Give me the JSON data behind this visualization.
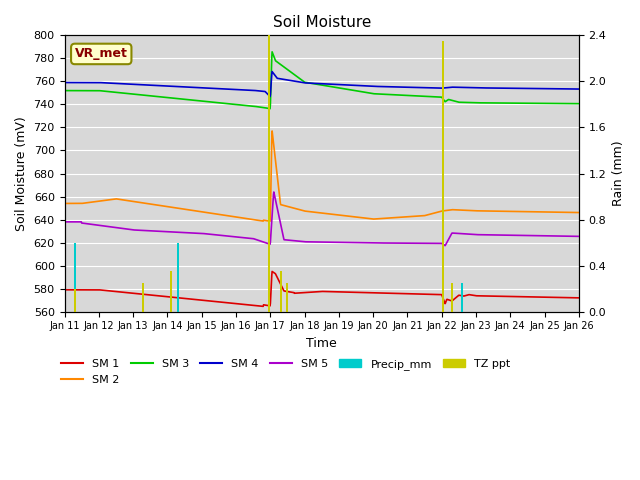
{
  "title": "Soil Moisture",
  "xlabel": "Time",
  "ylabel_left": "Soil Moisture (mV)",
  "ylabel_right": "Rain (mm)",
  "ylim_left": [
    560,
    800
  ],
  "ylim_right": [
    0.0,
    2.4
  ],
  "background_color": "#d8d8d8",
  "annotation_box": "VR_met",
  "x_labels": [
    "Jan 11",
    "Jan 12",
    "Jan 13",
    "Jan 14",
    "Jan 15",
    "Jan 16",
    "Jan 17",
    "Jan 18",
    "Jan 19",
    "Jan 20",
    "Jan 21",
    "Jan 22",
    "Jan 23",
    "Jan 24",
    "Jan 25",
    "Jan 26"
  ],
  "sm1_color": "#dd0000",
  "sm2_color": "#ff8800",
  "sm3_color": "#00cc00",
  "sm4_color": "#0000cc",
  "sm5_color": "#aa00cc",
  "precip_color": "#00cccc",
  "tzppt_color": "#cccc00"
}
